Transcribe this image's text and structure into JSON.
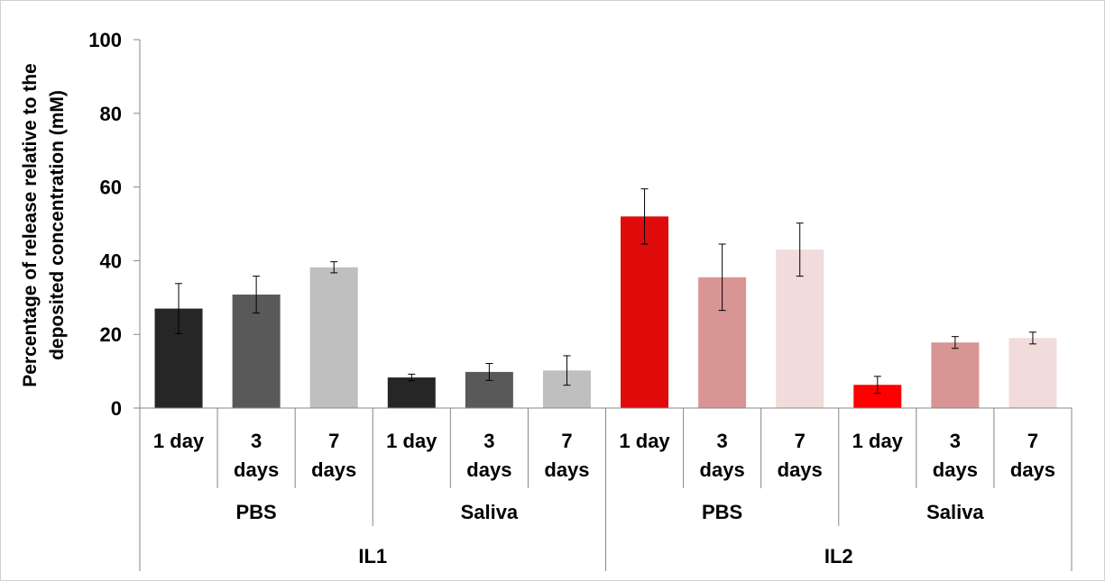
{
  "chart_data": {
    "type": "bar",
    "title": "",
    "xlabel": "",
    "ylabel_lines": [
      "Percentage of release relative to the",
      "deposited concentration (mM)"
    ],
    "ylim": [
      0,
      100
    ],
    "yticks": [
      "0",
      "20",
      "40",
      "60",
      "80",
      "100"
    ],
    "grid": false,
    "legend": "none",
    "categories": [
      {
        "label": [
          "1 day"
        ],
        "medium": "PBS",
        "ionic_liquid": "IL1",
        "value": 27.0,
        "err": 6.8,
        "color": "#262626"
      },
      {
        "label": [
          "3",
          "days"
        ],
        "medium": "PBS",
        "ionic_liquid": "IL1",
        "value": 30.8,
        "err": 5.0,
        "color": "#595959"
      },
      {
        "label": [
          "7",
          "days"
        ],
        "medium": "PBS",
        "ionic_liquid": "IL1",
        "value": 38.2,
        "err": 1.5,
        "color": "#bfbfbf"
      },
      {
        "label": [
          "1 day"
        ],
        "medium": "Saliva",
        "ionic_liquid": "IL1",
        "value": 8.3,
        "err": 0.9,
        "color": "#262626"
      },
      {
        "label": [
          "3",
          "days"
        ],
        "medium": "Saliva",
        "ionic_liquid": "IL1",
        "value": 9.8,
        "err": 2.3,
        "color": "#595959"
      },
      {
        "label": [
          "7",
          "days"
        ],
        "medium": "Saliva",
        "ionic_liquid": "IL1",
        "value": 10.2,
        "err": 4.0,
        "color": "#bfbfbf"
      },
      {
        "label": [
          "1 day"
        ],
        "medium": "PBS",
        "ionic_liquid": "IL2",
        "value": 52.0,
        "err": 7.5,
        "color": "#e00b0b"
      },
      {
        "label": [
          "3",
          "days"
        ],
        "medium": "PBS",
        "ionic_liquid": "IL2",
        "value": 35.5,
        "err": 9.0,
        "color": "#d99594"
      },
      {
        "label": [
          "7",
          "days"
        ],
        "medium": "PBS",
        "ionic_liquid": "IL2",
        "value": 43.0,
        "err": 7.2,
        "color": "#f2dcdb"
      },
      {
        "label": [
          "1 day"
        ],
        "medium": "Saliva",
        "ionic_liquid": "IL2",
        "value": 6.3,
        "err": 2.3,
        "color": "#ff0000"
      },
      {
        "label": [
          "3",
          "days"
        ],
        "medium": "Saliva",
        "ionic_liquid": "IL2",
        "value": 17.8,
        "err": 1.6,
        "color": "#d99594"
      },
      {
        "label": [
          "7",
          "days"
        ],
        "medium": "Saliva",
        "ionic_liquid": "IL2",
        "value": 19.0,
        "err": 1.6,
        "color": "#f2dcdb"
      }
    ],
    "medium_groups": [
      "PBS",
      "Saliva",
      "PBS",
      "Saliva"
    ],
    "ionic_liquid_groups": [
      "IL1",
      "IL2"
    ]
  }
}
